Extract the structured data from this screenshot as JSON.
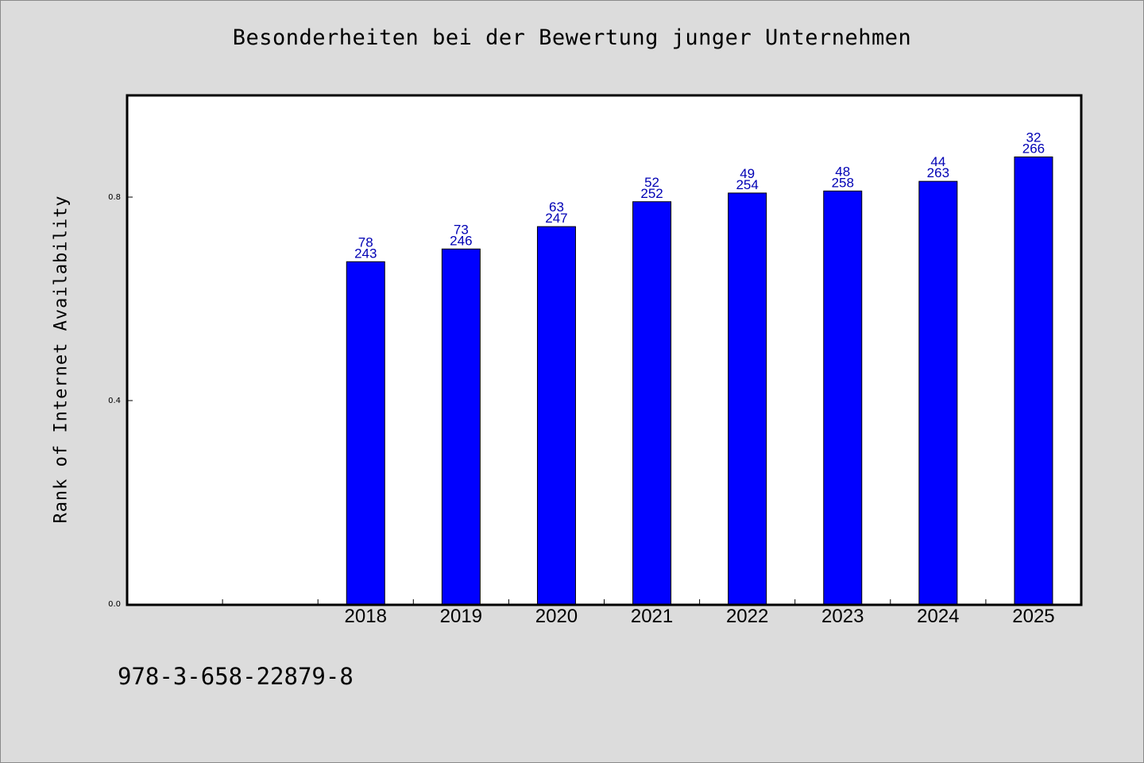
{
  "chart_data": {
    "type": "bar",
    "title": "Besonderheiten bei der Bewertung junger Unternehmen",
    "xlabel": "",
    "ylabel": "Rank of Internet Availability",
    "categories": [
      "",
      "",
      "2018",
      "2019",
      "2020",
      "2021",
      "2022",
      "2023",
      "2024",
      "2025"
    ],
    "values": [
      null,
      null,
      0.673,
      0.698,
      0.742,
      0.791,
      0.808,
      0.812,
      0.831,
      0.879
    ],
    "labels_top": [
      "",
      "",
      "78",
      "73",
      "63",
      "52",
      "49",
      "48",
      "44",
      "32"
    ],
    "labels_bottom": [
      "",
      "",
      "243",
      "246",
      "247",
      "252",
      "254",
      "258",
      "263",
      "266"
    ],
    "ylim": [
      0,
      1.0
    ],
    "yticks": [
      0.0,
      0.4,
      0.8
    ],
    "ytick_labels": [
      "0.0",
      "0.4",
      "0.8"
    ],
    "grid": false,
    "bar_color": "#0000ff",
    "label_color": "#0000b4"
  },
  "footer": {
    "isbn": "978-3-658-22879-8"
  }
}
